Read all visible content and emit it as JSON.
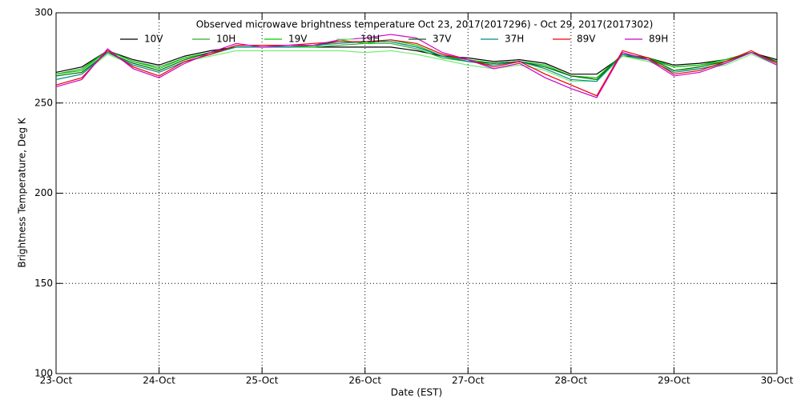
{
  "chart_data": {
    "type": "line",
    "title": "Observed microwave brightness temperature Oct 23, 2017(2017296) - Oct 29, 2017(2017302)",
    "x_label": "Date (EST)",
    "y_label": "Brightness Temperature, Deg K",
    "x": [
      0,
      0.25,
      0.5,
      0.75,
      1,
      1.25,
      1.5,
      1.75,
      2,
      2.25,
      2.5,
      2.75,
      3,
      3.25,
      3.5,
      3.75,
      4,
      4.25,
      4.5,
      4.75,
      5,
      5.25,
      5.5,
      5.75,
      6,
      6.25,
      6.5,
      6.75,
      7
    ],
    "xlim": [
      0,
      7
    ],
    "xticks": [
      {
        "value": 0,
        "label": "23-Oct"
      },
      {
        "value": 1,
        "label": "24-Oct"
      },
      {
        "value": 2,
        "label": "25-Oct"
      },
      {
        "value": 3,
        "label": "26-Oct"
      },
      {
        "value": 4,
        "label": "27-Oct"
      },
      {
        "value": 5,
        "label": "28-Oct"
      },
      {
        "value": 6,
        "label": "29-Oct"
      },
      {
        "value": 7,
        "label": "30-Oct"
      }
    ],
    "ylim": [
      100,
      300
    ],
    "yticks": [
      100,
      150,
      200,
      250,
      300
    ],
    "grid": true,
    "series": [
      {
        "name": "10V",
        "color": "#000000",
        "values": [
          267,
          270,
          279,
          274,
          271,
          276,
          279,
          281,
          281,
          281,
          281,
          281,
          281,
          281,
          279,
          276,
          275,
          273,
          274,
          272,
          266,
          266,
          276,
          275,
          271,
          272,
          274,
          278,
          274
        ]
      },
      {
        "name": "10H",
        "color": "#33aa33",
        "values": [
          266,
          269,
          279,
          273,
          270,
          275,
          278,
          281,
          281,
          281,
          281,
          282,
          283,
          283,
          280,
          275,
          273,
          272,
          273,
          270,
          265,
          264,
          276,
          274,
          270,
          271,
          273,
          278,
          273
        ]
      },
      {
        "name": "19V",
        "color": "#00cc00",
        "values": [
          266,
          268,
          279,
          273,
          269,
          275,
          278,
          281,
          281,
          281,
          281,
          285,
          283,
          285,
          282,
          276,
          274,
          272,
          273,
          271,
          265,
          264,
          277,
          275,
          270,
          271,
          274,
          278,
          273
        ]
      },
      {
        "name": "19H",
        "color": "#77ee77",
        "values": [
          263,
          266,
          277,
          271,
          267,
          273,
          276,
          279,
          279,
          279,
          279,
          279,
          278,
          279,
          277,
          274,
          271,
          269,
          271,
          268,
          262,
          262,
          276,
          273,
          268,
          269,
          271,
          277,
          271
        ]
      },
      {
        "name": "37V",
        "color": "#006600",
        "values": [
          265,
          267,
          278,
          272,
          268,
          274,
          278,
          281,
          281,
          281,
          282,
          284,
          284,
          284,
          281,
          276,
          273,
          272,
          273,
          270,
          265,
          263,
          277,
          275,
          268,
          270,
          273,
          278,
          273
        ]
      },
      {
        "name": "37H",
        "color": "#008b8b",
        "values": [
          263,
          266,
          278,
          271,
          267,
          273,
          277,
          281,
          281,
          281,
          282,
          283,
          284,
          284,
          281,
          276,
          273,
          271,
          273,
          269,
          263,
          262,
          277,
          274,
          267,
          269,
          272,
          278,
          272
        ]
      },
      {
        "name": "89V",
        "color": "#ee0000",
        "values": [
          260,
          264,
          279,
          270,
          265,
          273,
          277,
          282,
          282,
          282,
          283,
          284,
          284,
          285,
          283,
          277,
          274,
          270,
          273,
          266,
          260,
          254,
          279,
          275,
          266,
          268,
          273,
          279,
          272
        ]
      },
      {
        "name": "89H",
        "color": "#cc00cc",
        "values": [
          259,
          263,
          280,
          269,
          264,
          272,
          278,
          283,
          281,
          282,
          282,
          285,
          286,
          288,
          286,
          278,
          274,
          269,
          272,
          264,
          258,
          253,
          278,
          274,
          265,
          267,
          272,
          278,
          271
        ]
      }
    ]
  }
}
